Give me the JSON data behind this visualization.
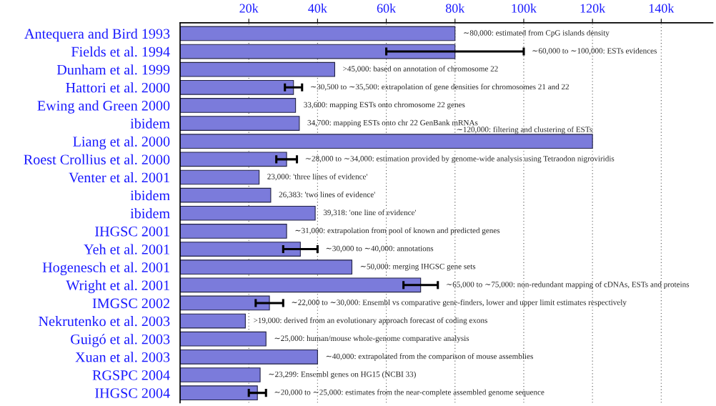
{
  "chart_data": {
    "type": "bar",
    "orientation": "horizontal",
    "categories": [
      "Antequera and Bird 1993",
      "Fields et al. 1994",
      "Dunham et al. 1999",
      "Hattori et al. 2000",
      "Ewing and Green 2000",
      "ibidem",
      "Liang et al. 2000",
      "Roest Crollius et al. 2000",
      "Venter et al. 2001",
      "ibidem",
      "ibidem",
      "IHGSC 2001",
      "Yeh et al. 2001",
      "Hogenesch et al. 2001",
      "Wright et al. 2001",
      "IMGSC 2002",
      "Nekrutenko et al. 2003",
      "Guigó et al. 2003",
      "Xuan et al. 2003",
      "RGSPC 2004",
      "IHGSC 2004"
    ],
    "values": [
      80000,
      80000,
      45000,
      33000,
      33600,
      34700,
      120000,
      31000,
      23000,
      26383,
      39318,
      31000,
      35000,
      50000,
      70000,
      26000,
      19000,
      25000,
      40000,
      23299,
      22500
    ],
    "errors": [
      null,
      [
        60000,
        100000
      ],
      null,
      [
        30500,
        35500
      ],
      null,
      null,
      null,
      [
        28000,
        34000
      ],
      null,
      null,
      null,
      null,
      [
        30000,
        40000
      ],
      null,
      [
        65000,
        75000
      ],
      [
        22000,
        30000
      ],
      null,
      null,
      null,
      null,
      [
        20000,
        25000
      ]
    ],
    "color": "#7b7bdb",
    "xlim": [
      0,
      155000
    ],
    "xticks": [
      {
        "value": 20000,
        "label": "20k"
      },
      {
        "value": 40000,
        "label": "40k"
      },
      {
        "value": 60000,
        "label": "60k"
      },
      {
        "value": 80000,
        "label": "80k"
      },
      {
        "value": 100000,
        "label": "100k"
      },
      {
        "value": 120000,
        "label": "120k"
      },
      {
        "value": 140000,
        "label": "140k"
      }
    ],
    "grid": "x",
    "legend": false,
    "annotations": [
      "∼80,000: estimated from CpG islands density",
      "∼60,000 to ∼100,000: ESTs evidences",
      ">45,000: based on annotation of chromosome 22",
      "∼30,500 to ∼35,500: extrapolation of gene densities for chromosomes 21 and 22",
      "33,600: mapping ESTs onto chromosome 22 genes",
      "34,700: mapping ESTs onto chr 22 GenBank mRNAs",
      "∼120,000: filtering and clustering of ESTs",
      "∼28,000 to ∼34,000: estimation provided by genome-wide analysis using Tetraodon nigroviridis",
      "23,000: 'three lines of evidence'",
      "26,383: 'two lines of evidence'",
      "39,318: 'one line of evidence'",
      "∼31,000: extrapolation from pool of known and predicted genes",
      "∼30,000 to ∼40,000: annotations",
      "∼50,000: merging IHGSC gene sets",
      "∼65,000 to ∼75,000: non-redundant mapping of cDNAs, ESTs and proteins",
      "∼22,000 to ∼30,000: Ensembl vs comparative gene-finders, lower and upper limit estimates respectively",
      ">19,000: derived from an evolutionary approach forecast of coding exons",
      "∼25,000: human/mouse whole-genome comparative analysis",
      "∼40,000: extrapolated from the comparison of mouse assemblies",
      "∼23,299: Ensembl genes on HG15 (NCBI 33)",
      "∼20,000 to ∼25,000: estimates from the near-complete assembled genome sequence"
    ]
  }
}
